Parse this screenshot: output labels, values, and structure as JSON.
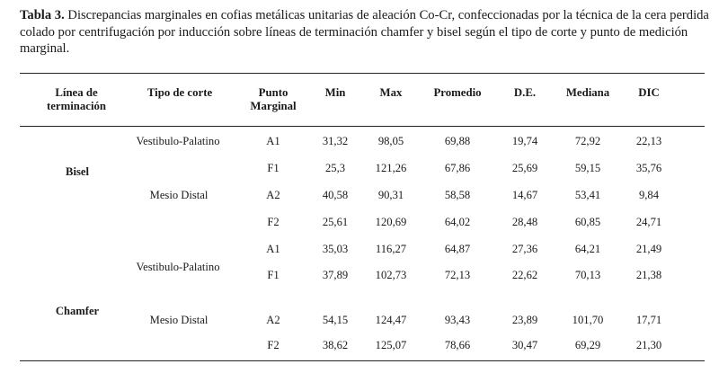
{
  "caption": {
    "label": "Tabla 3.",
    "text": " Discrepancias marginales en cofias metálicas unitarias de aleación Co-Cr, confeccionadas por la técnica de la cera perdida colado por   centrifugación por inducción sobre líneas de terminación chamfer y bisel según el tipo de corte y punto de medición marginal."
  },
  "headers": {
    "linea_l1": "Línea de",
    "linea_l2": "terminación",
    "tipo": "Tipo de corte",
    "punto_l1": "Punto",
    "punto_l2": "Marginal",
    "min": "Min",
    "max": "Max",
    "promedio": "Promedio",
    "de": "D.E.",
    "mediana": "Mediana",
    "dic": "DIC"
  },
  "groups": {
    "bisel": "Bisel",
    "chamfer": "Chamfer"
  },
  "cuts": {
    "bisel_vp": "Vestibulo-Palatino",
    "bisel_md": "Mesio Distal",
    "chamfer_vp": "Vestibulo-Palatino",
    "chamfer_md": "Mesio Distal"
  },
  "rows": [
    {
      "punto": "A1",
      "min": "31,32",
      "max": "98,05",
      "promedio": "69,88",
      "de": "19,74",
      "mediana": "72,92",
      "dic": "22,13"
    },
    {
      "punto": "F1",
      "min": "25,3",
      "max": "121,26",
      "promedio": "67,86",
      "de": "25,69",
      "mediana": "59,15",
      "dic": "35,76"
    },
    {
      "punto": "A2",
      "min": "40,58",
      "max": "90,31",
      "promedio": "58,58",
      "de": "14,67",
      "mediana": "53,41",
      "dic": "9,84"
    },
    {
      "punto": "F2",
      "min": "25,61",
      "max": "120,69",
      "promedio": "64,02",
      "de": "28,48",
      "mediana": "60,85",
      "dic": "24,71"
    },
    {
      "punto": "A1",
      "min": "35,03",
      "max": "116,27",
      "promedio": "64,87",
      "de": "27,36",
      "mediana": "64,21",
      "dic": "21,49"
    },
    {
      "punto": "F1",
      "min": "37,89",
      "max": "102,73",
      "promedio": "72,13",
      "de": "22,62",
      "mediana": "70,13",
      "dic": "21,38"
    },
    {
      "punto": "A2",
      "min": "54,15",
      "max": "124,47",
      "promedio": "93,43",
      "de": "23,89",
      "mediana": "101,70",
      "dic": "17,71"
    },
    {
      "punto": "F2",
      "min": "38,62",
      "max": "125,07",
      "promedio": "78,66",
      "de": "30,47",
      "mediana": "69,29",
      "dic": "21,30"
    }
  ]
}
